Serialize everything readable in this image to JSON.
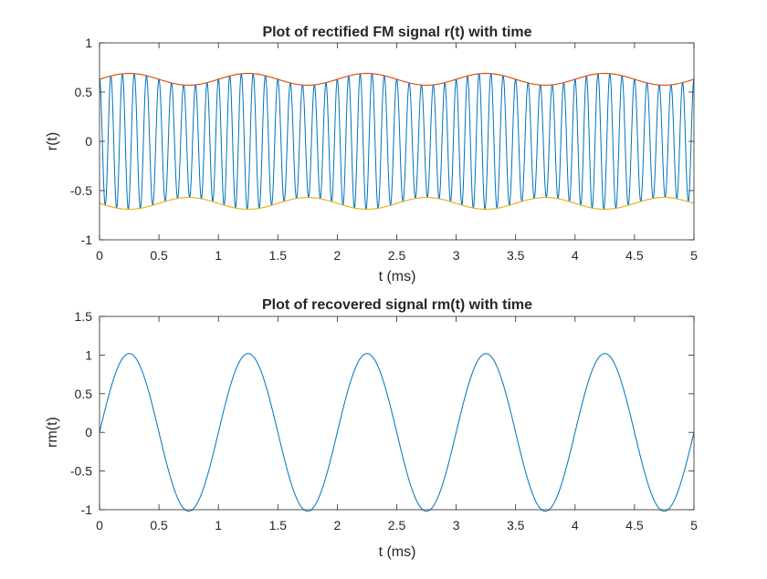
{
  "chart_data": [
    {
      "type": "line",
      "title": "Plot of rectified FM signal r(t) with time",
      "xlabel": "t (ms)",
      "ylabel": "r(t)",
      "xlim": [
        0,
        5
      ],
      "ylim": [
        -1,
        1
      ],
      "x_ticks": [
        "0",
        "0.5",
        "1",
        "1.5",
        "2",
        "2.5",
        "3",
        "3.5",
        "4",
        "4.5",
        "5"
      ],
      "y_ticks": [
        "-1",
        "-0.5",
        "0",
        "0.5",
        "1"
      ],
      "grid": false,
      "signal": {
        "carrier_cycles_per_ms": 10,
        "envelope_mean": 0.63,
        "envelope_deviation": 0.06,
        "message_frequency_khz": 1
      },
      "series": [
        {
          "role": "signal",
          "color": "#0072BD",
          "description_values": "oscillation between upper and lower envelope"
        },
        {
          "role": "upper-envelope",
          "color": "#D95319",
          "x": [
            0,
            0.25,
            0.75,
            1.25,
            1.75,
            2.25,
            2.75,
            3.25,
            3.75,
            4.25,
            4.75,
            5
          ],
          "y": [
            0.63,
            0.69,
            0.57,
            0.69,
            0.57,
            0.69,
            0.57,
            0.69,
            0.57,
            0.69,
            0.57,
            0.63
          ]
        },
        {
          "role": "lower-envelope",
          "color": "#EDB120",
          "x": [
            0,
            0.25,
            0.75,
            1.25,
            1.75,
            2.25,
            2.75,
            3.25,
            3.75,
            4.25,
            4.75,
            5
          ],
          "y": [
            -0.63,
            -0.69,
            -0.57,
            -0.69,
            -0.57,
            -0.69,
            -0.57,
            -0.69,
            -0.57,
            -0.69,
            -0.57,
            -0.63
          ]
        }
      ]
    },
    {
      "type": "line",
      "title": "Plot of recovered signal rm(t) with time",
      "xlabel": "t (ms)",
      "ylabel": "rm(t)",
      "xlim": [
        0,
        5
      ],
      "ylim": [
        -1,
        1.5
      ],
      "x_ticks": [
        "0",
        "0.5",
        "1",
        "1.5",
        "2",
        "2.5",
        "3",
        "3.5",
        "4",
        "4.5",
        "5"
      ],
      "y_ticks": [
        "-1",
        "-0.5",
        "0",
        "0.5",
        "1",
        "1.5"
      ],
      "grid": false,
      "series": [
        {
          "role": "recovered",
          "color": "#0072BD",
          "x": [
            0,
            0.25,
            0.5,
            0.75,
            1,
            1.25,
            1.5,
            1.75,
            2,
            2.25,
            2.5,
            2.75,
            3,
            3.25,
            3.5,
            3.75,
            4,
            4.25,
            4.5,
            4.75,
            5
          ],
          "y": [
            0.05,
            1.02,
            0,
            -1.02,
            0,
            1.02,
            0,
            -1.02,
            0,
            1.02,
            0,
            -1.02,
            0,
            1.02,
            0,
            -1.02,
            0,
            1.02,
            0,
            -1.02,
            -0.02
          ]
        }
      ]
    }
  ]
}
